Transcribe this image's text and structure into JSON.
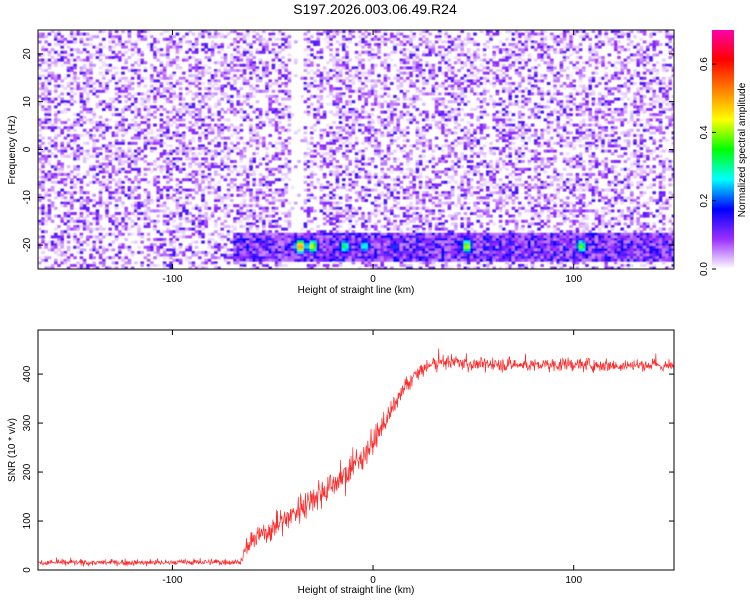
{
  "figure_title": "S197.2026.003.06.49.R24",
  "chart_data": [
    {
      "type": "heatmap",
      "title": "",
      "xlabel": "Height of straight line (km)",
      "ylabel": "Frequency (Hz)",
      "xlim": [
        -167,
        150
      ],
      "ylim": [
        -25,
        25
      ],
      "xticks": [
        -100,
        0,
        100
      ],
      "yticks": [
        -20,
        -10,
        0,
        10,
        20
      ],
      "colorbar": {
        "label": "Normalized spectral amplitude",
        "range": [
          0.0,
          0.7
        ],
        "ticks": [
          0.0,
          0.2,
          0.4,
          0.6
        ],
        "colormap": [
          "#ffffff",
          "#9b30ff",
          "#0000ff",
          "#00ffff",
          "#00ff00",
          "#ffff00",
          "#ff8000",
          "#ff0000",
          "#ff00aa"
        ]
      },
      "features": [
        {
          "type": "dense_band",
          "frequency_range": [
            -23,
            -17
          ],
          "x_range": [
            -70,
            150
          ]
        },
        {
          "type": "gap",
          "x_range": [
            -41,
            -36
          ]
        },
        {
          "type": "hotspots",
          "frequency": -20,
          "x": [
            -37,
            -31,
            -15,
            -5,
            10,
            46,
            103
          ],
          "amplitude": [
            0.55,
            0.45,
            0.35,
            0.3,
            0.2,
            0.45,
            0.4
          ]
        }
      ]
    },
    {
      "type": "line",
      "title": "",
      "xlabel": "Height of straight line (km)",
      "ylabel": "SNR (10 * v/v)",
      "xlim": [
        -167,
        150
      ],
      "ylim": [
        0,
        490
      ],
      "xticks": [
        -100,
        0,
        100
      ],
      "yticks": [
        0,
        100,
        200,
        300,
        400
      ],
      "series_color": "#ff2a2a",
      "x": [
        -167,
        -150,
        -130,
        -110,
        -90,
        -75,
        -66,
        -63,
        -60,
        -55,
        -50,
        -45,
        -40,
        -35,
        -30,
        -25,
        -20,
        -15,
        -10,
        -5,
        0,
        5,
        10,
        15,
        20,
        25,
        30,
        35,
        40,
        50,
        60,
        80,
        100,
        120,
        140,
        150
      ],
      "y": [
        15,
        15,
        15,
        15,
        16,
        16,
        17,
        45,
        60,
        75,
        85,
        100,
        115,
        130,
        150,
        160,
        175,
        190,
        210,
        235,
        260,
        295,
        330,
        365,
        395,
        410,
        420,
        425,
        425,
        420,
        420,
        418,
        420,
        418,
        418,
        415
      ],
      "noise_amplitude": [
        12,
        12,
        12,
        12,
        12,
        12,
        12,
        40,
        45,
        50,
        50,
        55,
        55,
        60,
        60,
        60,
        60,
        60,
        60,
        55,
        50,
        45,
        40,
        35,
        30,
        30,
        28,
        28,
        28,
        28,
        28,
        28,
        28,
        28,
        28,
        28
      ]
    }
  ]
}
